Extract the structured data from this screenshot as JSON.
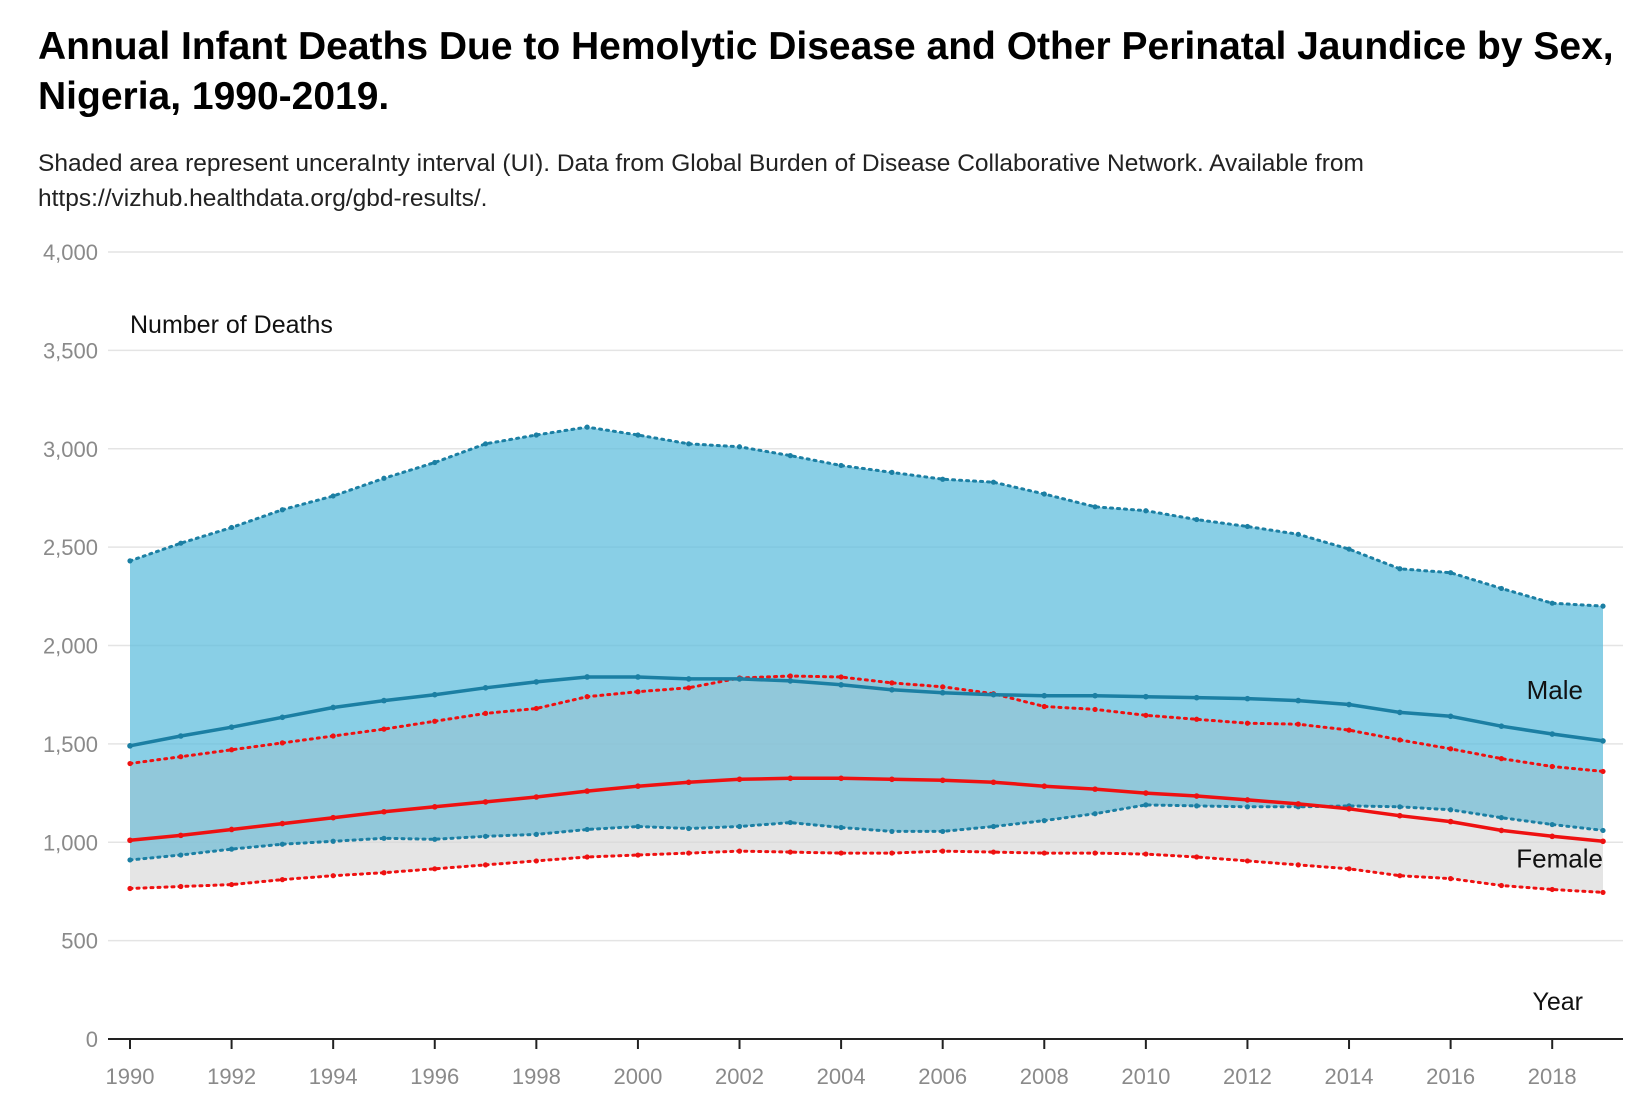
{
  "title": "Annual Infant Deaths Due to Hemolytic Disease and Other Perinatal Jaundice by Sex, Nigeria, 1990-2019.",
  "subtitle": "Shaded area represent unceraInty interval (UI). Data from Global Burden of Disease Collaborative Network. Available from https://vizhub.healthdata.org/gbd-results/.",
  "chart_data": {
    "type": "line",
    "ylabel": "Number of Deaths",
    "xlabel": "Year",
    "ylim": [
      0,
      4000
    ],
    "xlim": [
      1990,
      2019
    ],
    "grid": true,
    "yticks": [
      0,
      500,
      1000,
      1500,
      2000,
      2500,
      3000,
      3500,
      4000
    ],
    "ytick_labels": [
      "0",
      "500",
      "1,000",
      "1,500",
      "2,000",
      "2,500",
      "3,000",
      "3,500",
      "4,000"
    ],
    "xticks": [
      1990,
      1992,
      1994,
      1996,
      1998,
      2000,
      2002,
      2004,
      2006,
      2008,
      2010,
      2012,
      2014,
      2016,
      2018
    ],
    "xtick_labels": [
      "1990",
      "1992",
      "1994",
      "1996",
      "1998",
      "2000",
      "2002",
      "2004",
      "2006",
      "2008",
      "2010",
      "2012",
      "2014",
      "2016",
      "2018"
    ],
    "x": [
      1990,
      1991,
      1992,
      1993,
      1994,
      1995,
      1996,
      1997,
      1998,
      1999,
      2000,
      2001,
      2002,
      2003,
      2004,
      2005,
      2006,
      2007,
      2008,
      2009,
      2010,
      2011,
      2012,
      2013,
      2014,
      2015,
      2016,
      2017,
      2018,
      2019
    ],
    "series": [
      {
        "name": "Male",
        "color": "#1b7fa3",
        "band_color": "#5bbcdc",
        "values": [
          1490,
          1540,
          1585,
          1635,
          1685,
          1720,
          1750,
          1785,
          1815,
          1840,
          1840,
          1830,
          1830,
          1820,
          1800,
          1775,
          1760,
          1750,
          1745,
          1745,
          1740,
          1735,
          1730,
          1720,
          1700,
          1660,
          1640,
          1590,
          1550,
          1515
        ],
        "upper": [
          2430,
          2520,
          2600,
          2690,
          2760,
          2850,
          2930,
          3025,
          3070,
          3110,
          3070,
          3025,
          3010,
          2965,
          2915,
          2880,
          2845,
          2830,
          2770,
          2705,
          2685,
          2640,
          2605,
          2565,
          2490,
          2390,
          2370,
          2290,
          2215,
          2200
        ],
        "lower": [
          910,
          935,
          965,
          990,
          1005,
          1020,
          1015,
          1030,
          1040,
          1065,
          1080,
          1070,
          1080,
          1100,
          1075,
          1055,
          1055,
          1080,
          1110,
          1145,
          1190,
          1185,
          1180,
          1180,
          1185,
          1180,
          1165,
          1125,
          1090,
          1060
        ]
      },
      {
        "name": "Female",
        "color": "#ee1111",
        "band_color": "#e6e6e6",
        "values": [
          1010,
          1035,
          1065,
          1095,
          1125,
          1155,
          1180,
          1205,
          1230,
          1260,
          1285,
          1305,
          1320,
          1325,
          1325,
          1320,
          1315,
          1305,
          1285,
          1270,
          1250,
          1235,
          1215,
          1195,
          1170,
          1135,
          1105,
          1060,
          1030,
          1005
        ],
        "upper": [
          1400,
          1435,
          1470,
          1505,
          1540,
          1575,
          1615,
          1655,
          1680,
          1740,
          1765,
          1785,
          1835,
          1845,
          1840,
          1810,
          1790,
          1755,
          1690,
          1675,
          1645,
          1625,
          1605,
          1600,
          1570,
          1520,
          1475,
          1425,
          1385,
          1360
        ],
        "lower": [
          765,
          775,
          785,
          810,
          830,
          845,
          865,
          885,
          905,
          925,
          935,
          945,
          955,
          950,
          945,
          945,
          955,
          950,
          945,
          945,
          940,
          925,
          905,
          885,
          865,
          830,
          815,
          780,
          760,
          745
        ]
      }
    ]
  }
}
